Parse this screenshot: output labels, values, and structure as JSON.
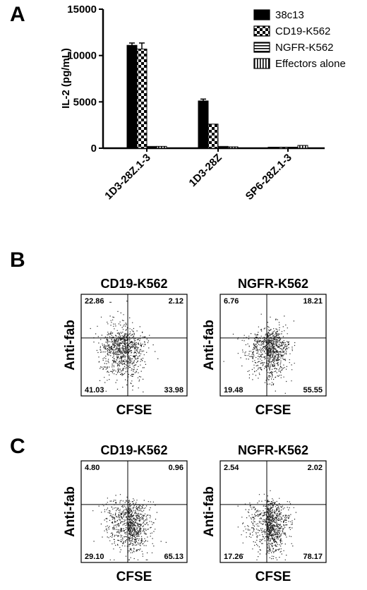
{
  "panels": {
    "a": "A",
    "b": "B",
    "c": "C"
  },
  "chart_data": [
    {
      "type": "bar",
      "ylabel": "IL-2 (pg/mL)",
      "ylim": [
        0,
        15000
      ],
      "yticks": [
        "0",
        "5000",
        "10000",
        "15000"
      ],
      "categories": [
        "1D3-28Z.1-3",
        "1D3-28Z",
        "SP6-28Z.1-3"
      ],
      "legend_position": "top-right",
      "series": [
        {
          "name": "38c13",
          "values": [
            11100,
            5100,
            50
          ],
          "errors": [
            250,
            200,
            20
          ]
        },
        {
          "name": "CD19-K562",
          "values": [
            10700,
            2600,
            100
          ],
          "errors": [
            650,
            0,
            20
          ]
        },
        {
          "name": "NGFR-K562",
          "values": [
            200,
            200,
            50
          ],
          "errors": [
            20,
            20,
            20
          ]
        },
        {
          "name": "Effectors alone",
          "values": [
            200,
            150,
            300
          ],
          "errors": [
            20,
            20,
            40
          ]
        }
      ]
    },
    {
      "type": "scatter",
      "panel": "B",
      "title": "CD19-K562",
      "xlabel": "CFSE",
      "ylabel": "Anti-fab",
      "quadrants": {
        "ul": "22.86",
        "ur": "2.12",
        "ll": "41.03",
        "lr": "33.98"
      }
    },
    {
      "type": "scatter",
      "panel": "B",
      "title": "NGFR-K562",
      "xlabel": "CFSE",
      "ylabel": "Anti-fab",
      "quadrants": {
        "ul": "6.76",
        "ur": "18.21",
        "ll": "19.48",
        "lr": "55.55"
      }
    },
    {
      "type": "scatter",
      "panel": "C",
      "title": "CD19-K562",
      "xlabel": "CFSE",
      "ylabel": "Anti-fab",
      "quadrants": {
        "ul": "4.80",
        "ur": "0.96",
        "ll": "29.10",
        "lr": "65.13"
      }
    },
    {
      "type": "scatter",
      "panel": "C",
      "title": "NGFR-K562",
      "xlabel": "CFSE",
      "ylabel": "Anti-fab",
      "quadrants": {
        "ul": "2.54",
        "ur": "2.02",
        "ll": "17.26",
        "lr": "78.17"
      }
    }
  ]
}
